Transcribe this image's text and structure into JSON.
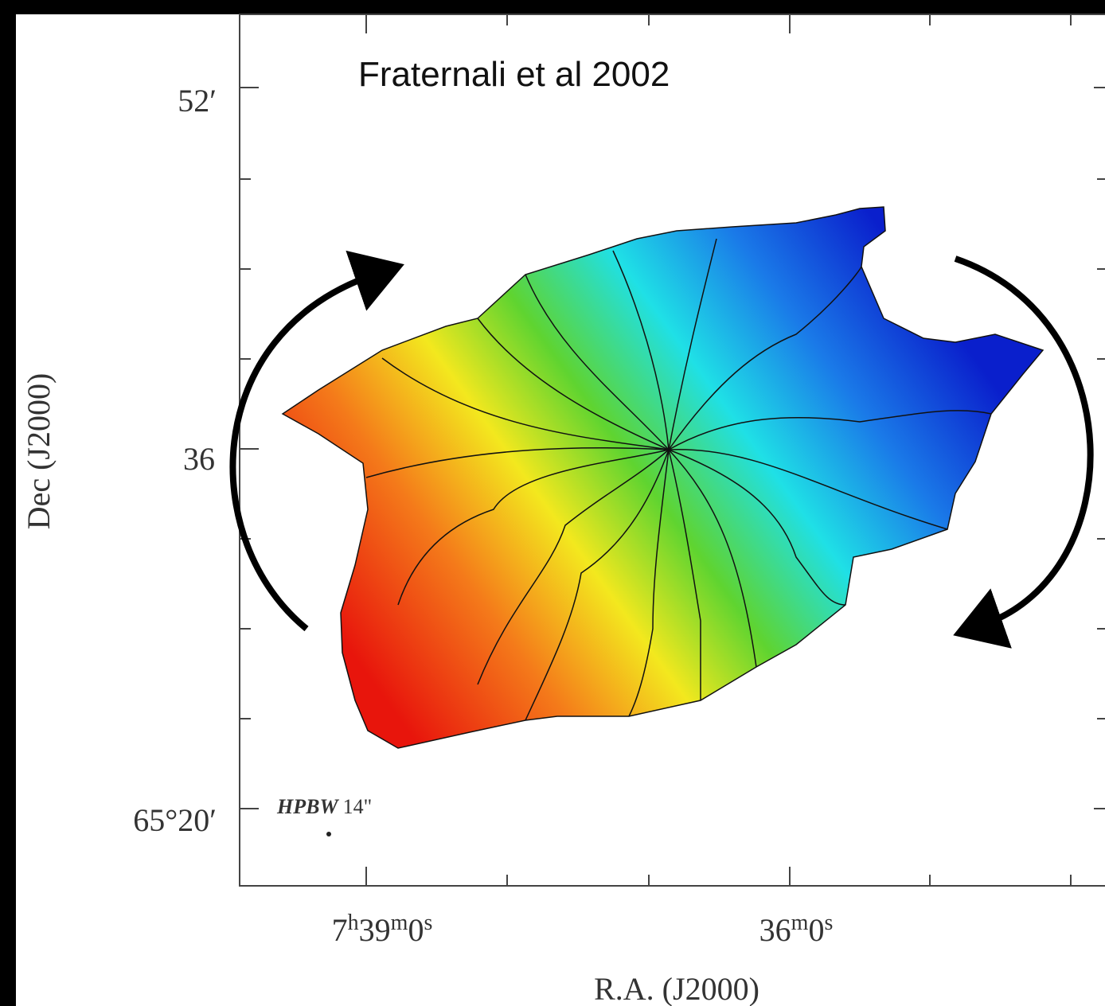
{
  "figure": {
    "annotation": "Fraternali et al 2002",
    "y_axis_label": "Dec (J2000)",
    "x_axis_label": "R.A. (J2000)",
    "y_tick_labels": [
      "52′",
      "36",
      "65°20′"
    ],
    "x_tick_labels": [
      [
        [
          "7",
          "h"
        ],
        [
          "39",
          "m"
        ],
        [
          "0",
          "s"
        ]
      ],
      [
        [
          "36",
          "m"
        ],
        [
          "0",
          "s"
        ]
      ]
    ],
    "beam": {
      "name": "HPBW",
      "size": "14\""
    }
  }
}
